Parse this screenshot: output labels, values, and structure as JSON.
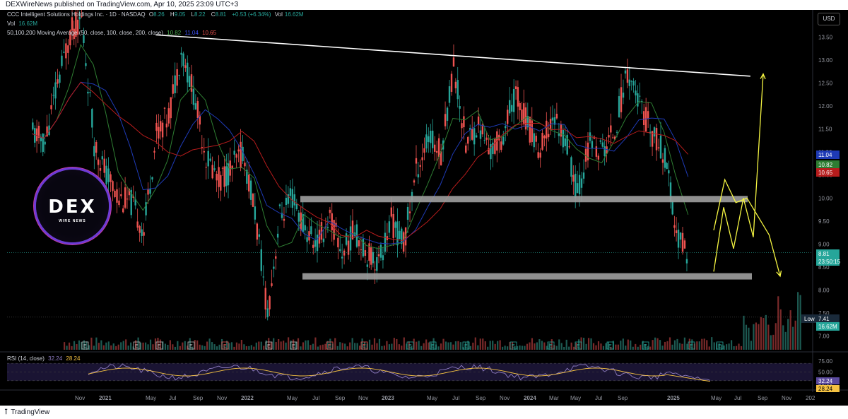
{
  "header": {
    "published_line": "DEXWireNews published on TradingView.com, Apr 10, 2025 23:09 UTC+3"
  },
  "legend": {
    "symbol": "CCC Intelligent Solutions Holdings Inc. · 1D · NASDAQ",
    "ohlc": [
      {
        "k": "O",
        "v": "8.26"
      },
      {
        "k": "H",
        "v": "9.05"
      },
      {
        "k": "L",
        "v": "8.22"
      },
      {
        "k": "C",
        "v": "8.81"
      }
    ],
    "change": "+0.53 (+6.34%)",
    "vol_label": "Vol",
    "vol_value": "16.62M",
    "vol_line_label": "Vol",
    "vol_line_value": "16.62M",
    "ma_label": "50,100,200 Moving Average (50, close, 100, close, 200, close)",
    "ma_values": [
      "10.82",
      "11.04",
      "10.65"
    ],
    "rsi_label": "RSI (14, close)",
    "rsi_values": [
      "32.24",
      "28.24"
    ]
  },
  "currency_button": "USD",
  "brand": {
    "word": "DEX",
    "sub": "WIRE NEWS"
  },
  "footer": {
    "logo_text": "TradingView"
  },
  "colors": {
    "up": "#26a69a",
    "down": "#ef5350",
    "ma50": "#2e7d32",
    "ma100": "#1e3ab5",
    "ma200": "#b71c1c",
    "rsi": "#8e7cc3",
    "rsi_ma": "#f5c242",
    "trendline": "#ffffff",
    "projection": "#f5f542",
    "zone": "#9e9e9e"
  },
  "chart_data": {
    "type": "candlestick",
    "price_axis": {
      "ticks": [
        "13.50",
        "13.00",
        "12.50",
        "12.00",
        "11.50",
        "11.00",
        "10.50",
        "10.00",
        "9.50",
        "9.00",
        "8.50",
        "8.00",
        "7.50",
        "7.00"
      ],
      "range": [
        6.7,
        14.0
      ]
    },
    "time_axis": {
      "ticks": [
        "Nov",
        "2021",
        "May",
        "Jul",
        "Sep",
        "Nov",
        "2022",
        "May",
        "Jul",
        "Sep",
        "Nov",
        "2023",
        "May",
        "Jul",
        "Sep",
        "Nov",
        "2024",
        "Mar",
        "May",
        "Jul",
        "Sep",
        "2025",
        "May",
        "Jul",
        "Sep",
        "Nov",
        "202"
      ]
    },
    "price_labels": [
      {
        "label": "",
        "value": "11.04",
        "color": "#1e3ab5"
      },
      {
        "label": "",
        "value": "10.82",
        "color": "#2e7d32"
      },
      {
        "label": "",
        "value": "10.65",
        "color": "#b71c1c"
      },
      {
        "label": "",
        "value": "8.81",
        "color": "#26a69a"
      },
      {
        "label": "",
        "value": "23:50:15",
        "color": "#26a69a"
      },
      {
        "label": "Low",
        "value": "7.41",
        "color": "#1a2a3a"
      },
      {
        "label": "",
        "value": "16.62M",
        "color": "#26a69a"
      }
    ],
    "price_path": [
      [
        "2020-11",
        11.4
      ],
      [
        "2020-12",
        11.2
      ],
      [
        "2021-01",
        12.5
      ],
      [
        "2021-02",
        13.6
      ],
      [
        "2021-03",
        13.9
      ],
      [
        "2021-04",
        11.2
      ],
      [
        "2021-05",
        10.5
      ],
      [
        "2021-06",
        10.0
      ],
      [
        "2021-07",
        9.9
      ],
      [
        "2021-08",
        9.3
      ],
      [
        "2021-09",
        11.4
      ],
      [
        "2021-10",
        11.8
      ],
      [
        "2021-11",
        13.2
      ],
      [
        "2021-12",
        12.3
      ],
      [
        "2022-01",
        10.9
      ],
      [
        "2022-02",
        10.4
      ],
      [
        "2022-03",
        10.6
      ],
      [
        "2022-04",
        11.0
      ],
      [
        "2022-05",
        9.7
      ],
      [
        "2022-06",
        7.5
      ],
      [
        "2022-07",
        9.6
      ],
      [
        "2022-08",
        10.0
      ],
      [
        "2022-09",
        9.3
      ],
      [
        "2022-10",
        9.0
      ],
      [
        "2022-11",
        9.6
      ],
      [
        "2022-12",
        8.8
      ],
      [
        "2023-01",
        9.3
      ],
      [
        "2023-02",
        8.8
      ],
      [
        "2023-03",
        8.6
      ],
      [
        "2023-04",
        9.5
      ],
      [
        "2023-05",
        9.0
      ],
      [
        "2023-06",
        10.6
      ],
      [
        "2023-07",
        11.3
      ],
      [
        "2023-08",
        11.0
      ],
      [
        "2023-09",
        12.9
      ],
      [
        "2023-10",
        11.2
      ],
      [
        "2023-11",
        11.6
      ],
      [
        "2023-12",
        11.0
      ],
      [
        "2024-01",
        11.4
      ],
      [
        "2024-02",
        12.3
      ],
      [
        "2024-03",
        11.6
      ],
      [
        "2024-04",
        11.0
      ],
      [
        "2024-05",
        11.8
      ],
      [
        "2024-06",
        11.3
      ],
      [
        "2024-07",
        10.1
      ],
      [
        "2024-08",
        11.2
      ],
      [
        "2024-09",
        11.0
      ],
      [
        "2024-10",
        11.5
      ],
      [
        "2024-11",
        12.8
      ],
      [
        "2024-12",
        12.0
      ],
      [
        "2025-01",
        11.4
      ],
      [
        "2025-02",
        10.9
      ],
      [
        "2025-03",
        9.2
      ],
      [
        "2025-04",
        8.81
      ]
    ],
    "moving_averages": [
      {
        "name": "MA 50",
        "last": 10.82
      },
      {
        "name": "MA 100",
        "last": 11.04
      },
      {
        "name": "MA 200",
        "last": 10.65
      }
    ],
    "annotations": {
      "trendline": [
        [
          "2021-09",
          13.55
        ],
        [
          "2025-09",
          12.65
        ]
      ],
      "resistance_zone": {
        "from": "2022-05",
        "to": "2025-05",
        "low": 9.93,
        "high": 10.0
      },
      "support_zone": {
        "from": "2022-05",
        "to": "2025-05",
        "low": 8.25,
        "high": 8.32
      },
      "bullish_projection": [
        8.4,
        9.8,
        8.9,
        10.0,
        9.15,
        12.7
      ],
      "bearish_projection": [
        9.3,
        10.4,
        9.9,
        10.0,
        9.6,
        9.2,
        8.3
      ]
    },
    "rsi": {
      "ticks": [
        "75.00",
        "50.00",
        "25.00"
      ],
      "range": [
        15,
        85
      ],
      "last": 32.24,
      "ma_last": 28.24
    }
  }
}
